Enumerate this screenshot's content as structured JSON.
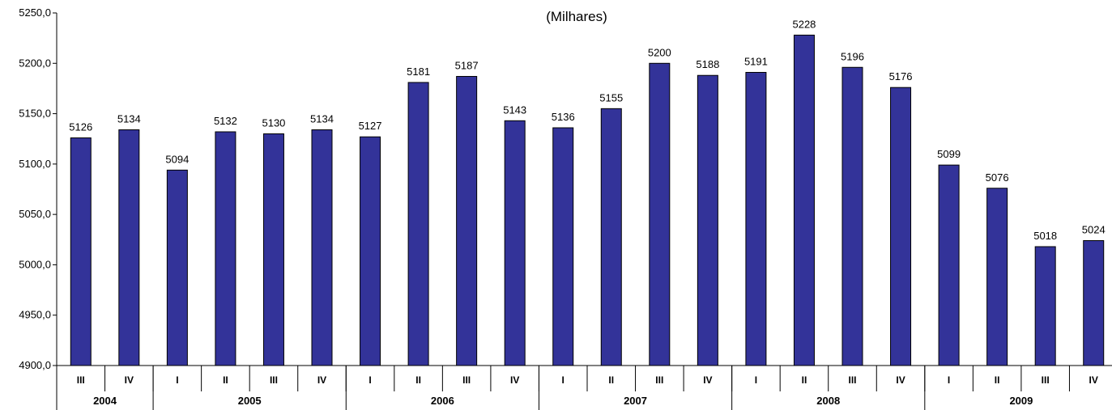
{
  "chart_data": {
    "type": "bar",
    "title": "(Milhares)",
    "xlabel": "",
    "ylabel": "",
    "ylim": [
      4900,
      5250
    ],
    "ytick_values": [
      4900,
      4950,
      5000,
      5050,
      5100,
      5150,
      5200,
      5250
    ],
    "ytick_labels": [
      "4900,0",
      "4950,0",
      "5000,0",
      "5050,0",
      "5100,0",
      "5150,0",
      "5200,0",
      "5250,0"
    ],
    "categories": [
      "III",
      "IV",
      "I",
      "II",
      "III",
      "IV",
      "I",
      "II",
      "III",
      "IV",
      "I",
      "II",
      "III",
      "IV",
      "I",
      "II",
      "III",
      "IV",
      "I",
      "II",
      "III",
      "IV"
    ],
    "groups": [
      {
        "label": "2004",
        "count": 2
      },
      {
        "label": "2005",
        "count": 4
      },
      {
        "label": "2006",
        "count": 4
      },
      {
        "label": "2007",
        "count": 4
      },
      {
        "label": "2008",
        "count": 4
      },
      {
        "label": "2009",
        "count": 4
      }
    ],
    "values": [
      5126,
      5134,
      5094,
      5132,
      5130,
      5134,
      5127,
      5181,
      5187,
      5143,
      5136,
      5155,
      5200,
      5188,
      5191,
      5228,
      5196,
      5176,
      5099,
      5076,
      5018,
      5024
    ],
    "bar_color": "#333399",
    "grid": false,
    "legend": "none"
  }
}
